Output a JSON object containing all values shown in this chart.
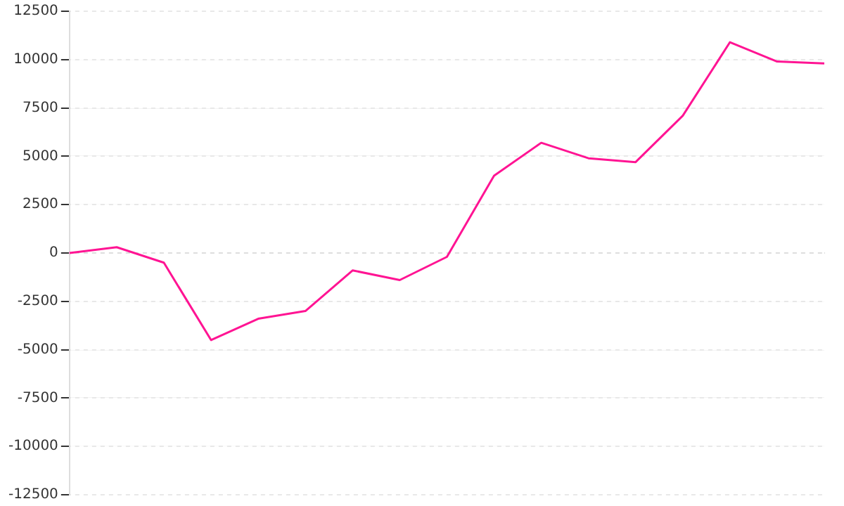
{
  "chart_data": {
    "type": "line",
    "categories": [
      null,
      null,
      null,
      null,
      null,
      null,
      null,
      null,
      null,
      null,
      null,
      null,
      null,
      null,
      null,
      null,
      null
    ],
    "series": [
      {
        "color": "#ff1493",
        "values": [
          0,
          300,
          -500,
          -4500,
          -3400,
          -3000,
          -900,
          -1400,
          -200,
          4000,
          5700,
          4900,
          4700,
          7100,
          10900,
          9900,
          9800
        ]
      }
    ],
    "ylim": [
      -12500,
      12500
    ],
    "yticks": [
      -12500,
      -10000,
      -7500,
      -5000,
      -2500,
      0,
      2500,
      5000,
      7500,
      10000,
      12500
    ],
    "grid": "y",
    "legend": false,
    "marker": "none",
    "line_style": "solid"
  }
}
